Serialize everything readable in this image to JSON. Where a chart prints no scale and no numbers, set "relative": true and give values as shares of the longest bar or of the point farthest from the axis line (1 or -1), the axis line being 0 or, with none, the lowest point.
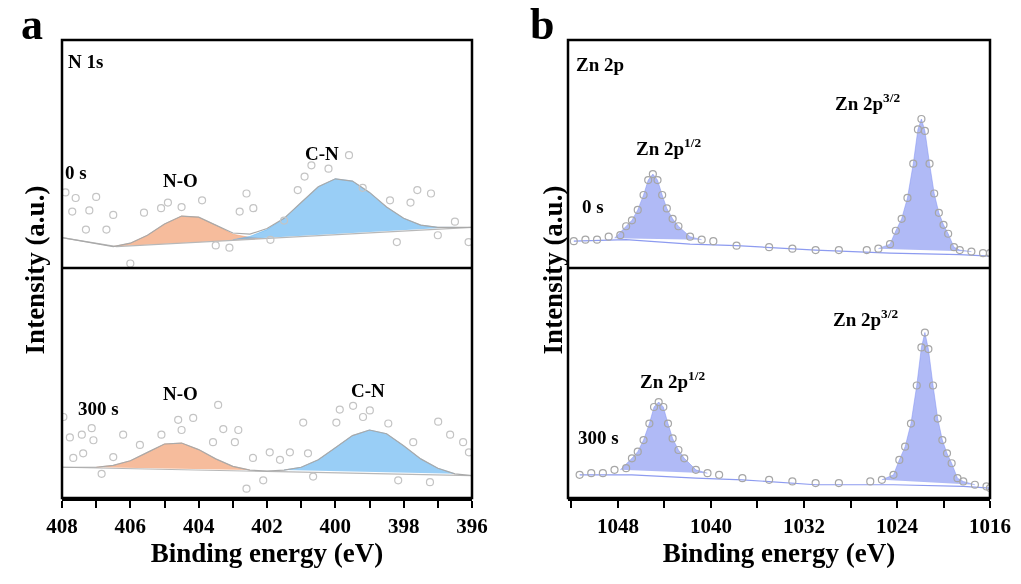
{
  "chart_data": [
    {
      "type": "line",
      "relative": true,
      "ylabel": "Intensity (a.u.)",
      "xlim": [
        408,
        396
      ],
      "tick_labels": false,
      "annotations": [
        "a",
        "N 1s",
        "0 s",
        "N-O",
        "C-N"
      ],
      "series": [
        {
          "type": "area",
          "color": "#f0905a",
          "x": [
            406.5,
            406,
            405.5,
            405,
            404.5,
            404,
            403.5,
            403,
            402.5,
            402
          ],
          "values": [
            0.19,
            0.22,
            0.29,
            0.39,
            0.46,
            0.45,
            0.38,
            0.3,
            0.27,
            0.26
          ]
        },
        {
          "type": "area",
          "color": "#55aef0",
          "x": [
            403,
            402.5,
            402,
            401.5,
            401,
            400.5,
            400,
            399.5,
            399,
            398.5,
            398,
            397.5,
            397,
            396.5
          ],
          "values": [
            0.25,
            0.28,
            0.34,
            0.44,
            0.58,
            0.72,
            0.79,
            0.77,
            0.67,
            0.54,
            0.44,
            0.38,
            0.36,
            0.36
          ]
        },
        {
          "color": "#b8b8b8",
          "x": [
            408,
            406.4,
            396
          ],
          "values": [
            0.27,
            0.19,
            0.36
          ]
        },
        {
          "color": "#a9a9a9",
          "x": [
            408,
            406.5,
            406,
            405.5,
            405,
            404.5,
            404,
            403.5,
            403,
            402.5,
            402,
            401.5,
            401,
            400.5,
            400,
            399.5,
            399,
            398.5,
            398,
            397.5,
            397,
            396.5,
            396
          ],
          "values": [
            0.27,
            0.19,
            0.22,
            0.29,
            0.39,
            0.46,
            0.45,
            0.38,
            0.31,
            0.3,
            0.35,
            0.44,
            0.58,
            0.72,
            0.79,
            0.77,
            0.67,
            0.54,
            0.44,
            0.38,
            0.36,
            0.36,
            0.36
          ]
        },
        {
          "type": "scatter",
          "marker": "circle",
          "color": "#c4c4c4",
          "x": [
            407.9,
            407.6,
            407.0,
            407.7,
            407.2,
            407.3,
            406.7,
            406.5,
            406.0,
            405.6,
            405.1,
            404.9,
            404.5,
            403.9,
            403.5,
            403.1,
            402.8,
            402.6,
            402.4,
            401.9,
            401.5,
            401.1,
            400.9,
            400.7,
            400.2,
            399.6,
            399.2,
            398.4,
            398.2,
            397.8,
            397.6,
            397.2,
            397.0,
            396.5,
            396.1
          ],
          "values": [
            0.67,
            0.62,
            0.63,
            0.5,
            0.51,
            0.34,
            0.34,
            0.47,
            0.04,
            0.49,
            0.53,
            0.58,
            0.54,
            0.6,
            0.2,
            0.18,
            0.5,
            0.66,
            0.53,
            0.25,
            0.42,
            0.69,
            0.81,
            0.91,
            0.88,
            1,
            0.71,
            0.6,
            0.23,
            0.58,
            0.69,
            0.66,
            0.29,
            0.41,
            0.23
          ]
        }
      ]
    },
    {
      "type": "line",
      "relative": true,
      "xlabel": "Binding energy (eV)",
      "xlim": [
        408,
        396
      ],
      "tick_labels": "x",
      "xticks": [
        408,
        {
          "value": 407,
          "label": null
        },
        406,
        {
          "value": 405,
          "label": null
        },
        404,
        {
          "value": 403,
          "label": null
        },
        402,
        {
          "value": 401,
          "label": null
        },
        400,
        {
          "value": 399,
          "label": null
        },
        398,
        {
          "value": 397,
          "label": null
        },
        396
      ],
      "annotations": [
        "300 s",
        "N-O",
        "C-N"
      ],
      "series": [
        {
          "type": "area",
          "color": "#f0905a",
          "x": [
            407,
            406.5,
            406,
            405.5,
            405,
            404.5,
            404,
            403.5,
            403,
            402.5
          ],
          "values": [
            0.33,
            0.35,
            0.4,
            0.49,
            0.58,
            0.59,
            0.52,
            0.42,
            0.34,
            0.3
          ]
        },
        {
          "type": "area",
          "color": "#55aef0",
          "x": [
            401.5,
            401,
            400.5,
            400,
            399.5,
            399,
            398.5,
            398,
            397.5,
            397,
            396.5
          ],
          "values": [
            0.3,
            0.33,
            0.41,
            0.54,
            0.67,
            0.73,
            0.69,
            0.56,
            0.42,
            0.32,
            0.26
          ]
        },
        {
          "color": "#b8b8b8",
          "x": [
            408,
            396
          ],
          "values": [
            0.33,
            0.24
          ]
        },
        {
          "color": "#a9a9a9",
          "x": [
            408,
            407,
            406.5,
            406,
            405.5,
            405,
            404.5,
            404,
            403.5,
            403,
            402.5,
            402,
            401.5,
            401,
            400.5,
            400,
            399.5,
            399,
            398.5,
            398,
            397.5,
            397,
            396.5,
            396
          ],
          "values": [
            0.33,
            0.33,
            0.35,
            0.4,
            0.49,
            0.58,
            0.59,
            0.52,
            0.42,
            0.34,
            0.3,
            0.29,
            0.3,
            0.33,
            0.41,
            0.54,
            0.67,
            0.73,
            0.69,
            0.56,
            0.42,
            0.32,
            0.26,
            0.24
          ]
        },
        {
          "type": "scatter",
          "marker": "circle",
          "color": "#c4c4c4",
          "x": [
            407.96,
            407.77,
            407.42,
            407.13,
            407.67,
            407.38,
            407.08,
            406.84,
            406.5,
            406.21,
            405.72,
            405.09,
            404.6,
            404.5,
            404.16,
            403.43,
            403.58,
            403.28,
            402.94,
            402.84,
            402.6,
            402.41,
            402.11,
            401.92,
            401.62,
            401.33,
            400.94,
            400.8,
            400.65,
            399.97,
            399.87,
            399.48,
            399.19,
            398.99,
            398.45,
            398.16,
            397.72,
            397.23,
            396.99,
            396.64,
            396.26,
            396.09
          ],
          "values": [
            0.87,
            0.65,
            0.68,
            0.75,
            0.43,
            0.48,
            0.62,
            0.26,
            0.44,
            0.68,
            0.57,
            0.68,
            0.84,
            0.73,
            0.86,
            1,
            0.6,
            0.74,
            0.6,
            0.73,
            0.1,
            0.43,
            0.19,
            0.49,
            0.41,
            0.49,
            0.81,
            0.48,
            0.23,
            0.81,
            0.95,
            0.99,
            0.87,
            0.94,
            0.8,
            0.19,
            0.6,
            0.17,
            0.82,
            0.68,
            0.6,
            0.49
          ]
        }
      ]
    },
    {
      "type": "line",
      "relative": true,
      "ylabel": "Intensity (a.u.)",
      "xlim": [
        1052.3,
        1016
      ],
      "tick_labels": false,
      "annotations": [
        "b",
        "Zn 2p",
        "0 s",
        "Zn 2p$^{1/2}$",
        "Zn 2p$^{3/2}$"
      ],
      "series": [
        {
          "type": "area",
          "color": "#7b8cf0",
          "x": [
            1048.3,
            1047.3,
            1046.8,
            1046.3,
            1045.8,
            1045.4,
            1045,
            1044.6,
            1044.2,
            1043.8,
            1043.3,
            1042.8,
            1041.8,
            1040.8
          ],
          "values": [
            0.2,
            0.28,
            0.32,
            0.39,
            0.49,
            0.59,
            0.63,
            0.59,
            0.49,
            0.4,
            0.33,
            0.28,
            0.21,
            0.19
          ]
        },
        {
          "type": "area",
          "color": "#7b8cf0",
          "x": [
            1025.6,
            1024.6,
            1024.1,
            1023.6,
            1023.1,
            1022.6,
            1022.2,
            1021.9,
            1021.6,
            1021.2,
            1020.8,
            1020.4,
            1020,
            1019.6,
            1019.1,
            1018.6,
            1017.6
          ],
          "values": [
            0.13,
            0.16,
            0.25,
            0.33,
            0.47,
            0.7,
            0.93,
            1,
            0.92,
            0.7,
            0.5,
            0.37,
            0.29,
            0.23,
            0.14,
            0.12,
            0.11
          ]
        },
        {
          "color": "#8d9bf0",
          "x": [
            1051.8,
            1047.3,
            1041.8,
            1037.8,
            1031,
            1024.6,
            1018.6,
            1016
          ],
          "values": [
            0.18,
            0.19,
            0.16,
            0.15,
            0.12,
            0.1,
            0.09,
            0.08
          ]
        },
        {
          "type": "scatter",
          "marker": "circle",
          "color": "#a6a6a6",
          "x": [
            1051.8,
            1050.8,
            1049.8,
            1048.8,
            1047.8,
            1047.3,
            1046.8,
            1046.3,
            1045.8,
            1045.4,
            1045,
            1044.6,
            1044.2,
            1043.8,
            1043.3,
            1042.8,
            1041.8,
            1040.8,
            1039.8,
            1037.8,
            1035,
            1033,
            1031,
            1029,
            1026.6,
            1025.6,
            1024.6,
            1024.1,
            1023.6,
            1023.1,
            1022.6,
            1022.2,
            1021.9,
            1021.6,
            1021.2,
            1020.8,
            1020.4,
            1020,
            1019.6,
            1019.1,
            1018.6,
            1017.6,
            1016.6,
            1016
          ],
          "values": [
            0.18,
            0.19,
            0.19,
            0.21,
            0.22,
            0.28,
            0.32,
            0.39,
            0.49,
            0.59,
            0.63,
            0.59,
            0.49,
            0.4,
            0.33,
            0.28,
            0.21,
            0.19,
            0.18,
            0.15,
            0.14,
            0.13,
            0.12,
            0.12,
            0.12,
            0.13,
            0.16,
            0.25,
            0.33,
            0.47,
            0.7,
            0.93,
            1,
            0.92,
            0.7,
            0.5,
            0.37,
            0.29,
            0.23,
            0.14,
            0.12,
            0.11,
            0.1,
            0.1
          ]
        }
      ]
    },
    {
      "type": "line",
      "relative": true,
      "xlabel": "Binding energy (eV)",
      "xlim": [
        1052.3,
        1016
      ],
      "tick_labels": "x",
      "xticks": [
        {
          "value": 1052,
          "label": null
        },
        1048,
        {
          "value": 1044,
          "label": null
        },
        1040,
        {
          "value": 1036,
          "label": null
        },
        1032,
        {
          "value": 1028,
          "label": null
        },
        1024,
        {
          "value": 1020,
          "label": null
        },
        1016
      ],
      "annotations": [
        "300 s",
        "Zn 2p$^{1/2}$",
        "Zn 2p$^{3/2}$"
      ],
      "series": [
        {
          "type": "area",
          "color": "#7b8cf0",
          "x": [
            1047.8,
            1046.8,
            1046.3,
            1045.8,
            1045.3,
            1044.9,
            1044.5,
            1044.1,
            1043.7,
            1043.3,
            1042.8,
            1042.3,
            1041.3,
            1040.3
          ],
          "values": [
            0.17,
            0.24,
            0.28,
            0.35,
            0.45,
            0.55,
            0.58,
            0.55,
            0.45,
            0.36,
            0.29,
            0.24,
            0.17,
            0.15
          ]
        },
        {
          "type": "area",
          "color": "#7b8cf0",
          "x": [
            1025.3,
            1024.3,
            1023.8,
            1023.3,
            1022.8,
            1022.3,
            1021.9,
            1021.6,
            1021.3,
            1020.9,
            1020.5,
            1020.1,
            1019.7,
            1019.3,
            1018.8,
            1018.3,
            1017.3
          ],
          "values": [
            0.11,
            0.14,
            0.23,
            0.31,
            0.45,
            0.68,
            0.91,
            1,
            0.9,
            0.68,
            0.48,
            0.35,
            0.27,
            0.21,
            0.12,
            0.1,
            0.08
          ]
        },
        {
          "color": "#8d9bf0",
          "x": [
            1051.3,
            1046.8,
            1041.3,
            1037.3,
            1031,
            1024.3,
            1018.3,
            1016
          ],
          "values": [
            0.14,
            0.14,
            0.12,
            0.11,
            0.08,
            0.08,
            0.07,
            0.06
          ]
        },
        {
          "type": "scatter",
          "marker": "circle",
          "color": "#a6a6a6",
          "x": [
            1051.3,
            1050.3,
            1049.3,
            1048.3,
            1047.3,
            1046.8,
            1046.3,
            1045.8,
            1045.3,
            1044.9,
            1044.5,
            1044.1,
            1043.7,
            1043.3,
            1042.8,
            1042.3,
            1041.3,
            1040.3,
            1039.3,
            1037.3,
            1035,
            1033,
            1031,
            1029,
            1026.3,
            1025.3,
            1024.3,
            1023.8,
            1023.3,
            1022.8,
            1022.3,
            1021.9,
            1021.6,
            1021.3,
            1020.9,
            1020.5,
            1020.1,
            1019.7,
            1019.3,
            1018.8,
            1018.3,
            1017.3,
            1016.3,
            1016
          ],
          "values": [
            0.14,
            0.15,
            0.15,
            0.17,
            0.18,
            0.24,
            0.28,
            0.35,
            0.45,
            0.55,
            0.58,
            0.55,
            0.45,
            0.36,
            0.29,
            0.24,
            0.17,
            0.15,
            0.14,
            0.12,
            0.11,
            0.1,
            0.09,
            0.09,
            0.1,
            0.11,
            0.14,
            0.23,
            0.31,
            0.45,
            0.68,
            0.91,
            1,
            0.9,
            0.68,
            0.48,
            0.35,
            0.27,
            0.21,
            0.12,
            0.1,
            0.08,
            0.07,
            0.06
          ]
        }
      ]
    }
  ]
}
